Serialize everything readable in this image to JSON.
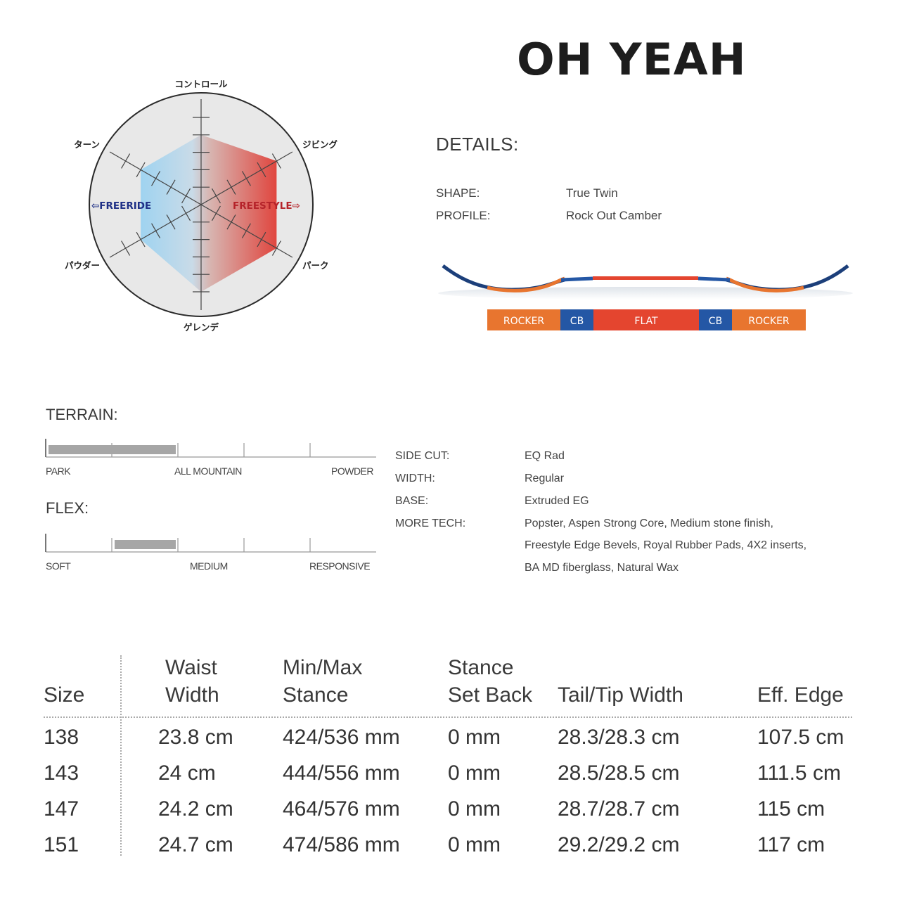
{
  "title": "OH YEAH",
  "radar": {
    "axes": [
      "コントロール",
      "ジビング",
      "パーク",
      "ゲレンデ",
      "パウダー",
      "ターン"
    ],
    "left_label": "⇦FREERIDE",
    "right_label": "FREESTYLE⇨",
    "values": [
      4,
      5,
      5,
      5,
      4,
      4
    ],
    "max": 5,
    "colors": {
      "freeride": "#1e2f86",
      "freestyle": "#c0262d",
      "left_fill": "#8ec8ea",
      "right_fill": "#d9534f"
    }
  },
  "details": {
    "heading": "DETAILS:",
    "rows": [
      {
        "label": "SHAPE:",
        "value": "True Twin"
      },
      {
        "label": "PROFILE:",
        "value": "Rock Out Camber"
      }
    ]
  },
  "profile_bar": {
    "segments": [
      {
        "label": "ROCKER",
        "color": "#e8752f"
      },
      {
        "label": "CB",
        "color": "#2457a5"
      },
      {
        "label": "FLAT",
        "color": "#e4452f"
      },
      {
        "label": "CB",
        "color": "#2457a5"
      },
      {
        "label": "ROCKER",
        "color": "#e8752f"
      }
    ]
  },
  "terrain": {
    "heading": "TERRAIN:",
    "labels": [
      "PARK",
      "ALL MOUNTAIN",
      "POWDER"
    ],
    "range": [
      0,
      0.4
    ]
  },
  "flex": {
    "heading": "FLEX:",
    "labels": [
      "SOFT",
      "MEDIUM",
      "RESPONSIVE"
    ],
    "range": [
      0.2,
      0.4
    ]
  },
  "specs": [
    {
      "label": "SIDE CUT:",
      "value": [
        "EQ Rad"
      ]
    },
    {
      "label": "WIDTH:",
      "value": [
        "Regular"
      ]
    },
    {
      "label": "BASE:",
      "value": [
        "Extruded EG"
      ]
    },
    {
      "label": "MORE TECH:",
      "value": [
        "Popster, Aspen Strong Core, Medium stone finish,",
        "Freestyle Edge Bevels, Royal Rubber Pads, 4X2 inserts,",
        "BA MD fiberglass, Natural Wax"
      ]
    }
  ],
  "table": {
    "headers": [
      [
        "",
        "Size"
      ],
      [
        "Waist",
        "Width"
      ],
      [
        "Min/Max",
        "Stance"
      ],
      [
        "Stance",
        "Set Back"
      ],
      [
        "",
        "Tail/Tip Width"
      ],
      [
        "",
        "Eff. Edge"
      ]
    ],
    "rows": [
      [
        "138",
        "23.8 cm",
        "424/536 mm",
        "0 mm",
        "28.3/28.3 cm",
        "107.5 cm"
      ],
      [
        "143",
        "24 cm",
        "444/556 mm",
        "0 mm",
        "28.5/28.5 cm",
        "111.5 cm"
      ],
      [
        "147",
        "24.2 cm",
        "464/576 mm",
        "0 mm",
        "28.7/28.7 cm",
        "115 cm"
      ],
      [
        "151",
        "24.7 cm",
        "474/586 mm",
        "0 mm",
        "29.2/29.2 cm",
        "117 cm"
      ]
    ]
  }
}
